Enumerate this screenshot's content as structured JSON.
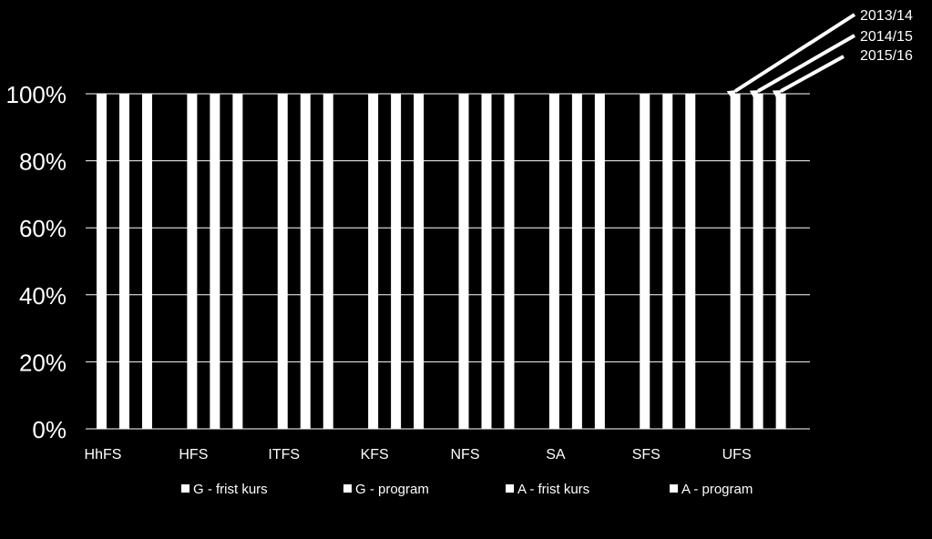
{
  "chart_data": {
    "type": "bar",
    "stacked": true,
    "categories": [
      "HhFS",
      "HFS",
      "ITFS",
      "KFS",
      "NFS",
      "SA",
      "SFS",
      "UFS"
    ],
    "periods": [
      "2013/14",
      "2014/15",
      "2015/16"
    ],
    "series": [
      {
        "name": "G - frist kurs",
        "color": "#ffffff"
      },
      {
        "name": "G - program",
        "color": "#ffffff"
      },
      {
        "name": "A - frist kurs",
        "color": "#ffffff"
      },
      {
        "name": "A - program",
        "color": "#ffffff"
      }
    ],
    "values_percent_total": [
      [
        100,
        100,
        100
      ],
      [
        100,
        100,
        100
      ],
      [
        100,
        100,
        100
      ],
      [
        100,
        100,
        100
      ],
      [
        100,
        100,
        100
      ],
      [
        100,
        100,
        100
      ],
      [
        100,
        100,
        100
      ],
      [
        100,
        100,
        100
      ]
    ],
    "yticks": [
      "0%",
      "20%",
      "40%",
      "60%",
      "80%",
      "100%"
    ],
    "ylim": [
      0,
      100
    ],
    "grid": true,
    "legend_position": "bottom",
    "annotations": [
      "2013/14",
      "2014/15",
      "2015/16"
    ],
    "colors": {
      "background": "#000000",
      "bar": "#ffffff",
      "grid": "#ffffff"
    }
  }
}
